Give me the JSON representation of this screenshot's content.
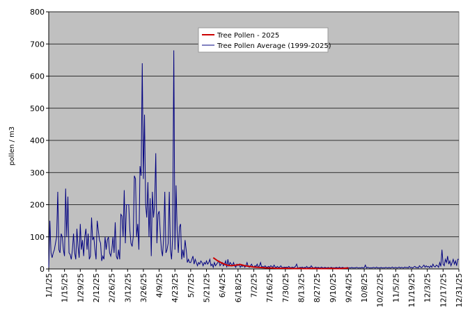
{
  "chart_data": {
    "type": "line",
    "ylabel": "pollen / m3",
    "xlim": [
      0,
      364
    ],
    "ylim": [
      0,
      800
    ],
    "yticks": [
      0,
      100,
      200,
      300,
      400,
      500,
      600,
      700,
      800
    ],
    "xticks": [
      {
        "value": 0,
        "label": "1/1/25"
      },
      {
        "value": 14,
        "label": "1/15/25"
      },
      {
        "value": 28,
        "label": "1/29/25"
      },
      {
        "value": 42,
        "label": "2/12/25"
      },
      {
        "value": 56,
        "label": "2/26/25"
      },
      {
        "value": 70,
        "label": "3/12/25"
      },
      {
        "value": 84,
        "label": "3/26/25"
      },
      {
        "value": 98,
        "label": "4/9/25"
      },
      {
        "value": 112,
        "label": "4/23/25"
      },
      {
        "value": 126,
        "label": "5/7/25"
      },
      {
        "value": 140,
        "label": "5/21/25"
      },
      {
        "value": 154,
        "label": "6/4/25"
      },
      {
        "value": 168,
        "label": "6/18/25"
      },
      {
        "value": 182,
        "label": "7/2/25"
      },
      {
        "value": 196,
        "label": "7/16/25"
      },
      {
        "value": 210,
        "label": "7/30/25"
      },
      {
        "value": 224,
        "label": "8/13/25"
      },
      {
        "value": 238,
        "label": "8/27/25"
      },
      {
        "value": 252,
        "label": "9/10/25"
      },
      {
        "value": 266,
        "label": "9/24/25"
      },
      {
        "value": 280,
        "label": "10/8/25"
      },
      {
        "value": 294,
        "label": "10/22/25"
      },
      {
        "value": 308,
        "label": "11/5/25"
      },
      {
        "value": 322,
        "label": "11/19/25"
      },
      {
        "value": 336,
        "label": "12/3/25"
      },
      {
        "value": 350,
        "label": "12/17/25"
      },
      {
        "value": 364,
        "label": "12/31/25"
      }
    ],
    "grid": true,
    "plot_background": "#c0c0c0",
    "x": [
      0,
      1,
      2,
      3,
      4,
      5,
      6,
      7,
      8,
      9,
      10,
      11,
      12,
      13,
      14,
      15,
      16,
      17,
      18,
      19,
      20,
      21,
      22,
      23,
      24,
      25,
      26,
      27,
      28,
      29,
      30,
      31,
      32,
      33,
      34,
      35,
      36,
      37,
      38,
      39,
      40,
      41,
      42,
      43,
      44,
      45,
      46,
      47,
      48,
      49,
      50,
      51,
      52,
      53,
      54,
      55,
      56,
      57,
      58,
      59,
      60,
      61,
      62,
      63,
      64,
      65,
      66,
      67,
      68,
      69,
      70,
      71,
      72,
      73,
      74,
      75,
      76,
      77,
      78,
      79,
      80,
      81,
      82,
      83,
      84,
      85,
      86,
      87,
      88,
      89,
      90,
      91,
      92,
      93,
      94,
      95,
      96,
      97,
      98,
      99,
      100,
      101,
      102,
      103,
      104,
      105,
      106,
      107,
      108,
      109,
      110,
      111,
      112,
      113,
      114,
      115,
      116,
      117,
      118,
      119,
      120,
      121,
      122,
      123,
      124,
      125,
      126,
      127,
      128,
      129,
      130,
      131,
      132,
      133,
      134,
      135,
      136,
      137,
      138,
      139,
      140,
      141,
      142,
      143,
      144,
      145,
      146,
      147,
      148,
      149,
      150,
      151,
      152,
      153,
      154,
      155,
      156,
      157,
      158,
      159,
      160,
      161,
      162,
      163,
      164,
      165,
      166,
      167,
      168,
      169,
      170,
      171,
      172,
      173,
      174,
      175,
      176,
      177,
      178,
      179,
      180,
      181,
      182,
      183,
      184,
      185,
      186,
      187,
      188,
      189,
      190,
      191,
      192,
      193,
      194,
      195,
      196,
      197,
      198,
      199,
      200,
      201,
      202,
      203,
      204,
      205,
      206,
      207,
      208,
      209,
      210,
      211,
      212,
      213,
      214,
      215,
      216,
      217,
      218,
      219,
      220,
      221,
      222,
      223,
      224,
      225,
      226,
      227,
      228,
      229,
      230,
      231,
      232,
      233,
      234,
      235,
      236,
      237,
      238,
      239,
      240,
      241,
      242,
      243,
      244,
      245,
      246,
      247,
      248,
      249,
      250,
      251,
      252,
      253,
      254,
      255,
      256,
      257,
      258,
      259,
      260,
      261,
      262,
      263,
      264,
      265,
      266,
      267,
      268,
      269,
      270,
      271,
      272,
      273,
      274,
      275,
      276,
      277,
      278,
      279,
      280,
      281,
      282,
      283,
      284,
      285,
      286,
      287,
      288,
      289,
      290,
      291,
      292,
      293,
      294,
      295,
      296,
      297,
      298,
      299,
      300,
      301,
      302,
      303,
      304,
      305,
      306,
      307,
      308,
      309,
      310,
      311,
      312,
      313,
      314,
      315,
      316,
      317,
      318,
      319,
      320,
      321,
      322,
      323,
      324,
      325,
      326,
      327,
      328,
      329,
      330,
      331,
      332,
      333,
      334,
      335,
      336,
      337,
      338,
      339,
      340,
      341,
      342,
      343,
      344,
      345,
      346,
      347,
      348,
      349,
      350,
      351,
      352,
      353,
      354,
      355,
      356,
      357,
      358,
      359,
      360,
      361,
      362,
      363,
      364
    ],
    "series": [
      {
        "name": "Tree Pollen Average (1999-2025)",
        "color": "#000080",
        "values": [
          5,
          150,
          50,
          35,
          50,
          60,
          80,
          100,
          240,
          60,
          50,
          110,
          100,
          60,
          40,
          250,
          100,
          225,
          50,
          45,
          30,
          60,
          110,
          50,
          30,
          125,
          70,
          35,
          140,
          60,
          90,
          40,
          100,
          125,
          60,
          110,
          30,
          40,
          160,
          90,
          100,
          60,
          30,
          150,
          120,
          90,
          80,
          25,
          40,
          30,
          100,
          60,
          90,
          100,
          50,
          40,
          60,
          100,
          50,
          145,
          40,
          30,
          60,
          30,
          170,
          165,
          100,
          245,
          80,
          200,
          200,
          200,
          120,
          80,
          70,
          100,
          290,
          280,
          100,
          140,
          60,
          320,
          290,
          640,
          280,
          480,
          200,
          160,
          270,
          100,
          220,
          40,
          240,
          160,
          200,
          360,
          80,
          170,
          180,
          110,
          60,
          40,
          100,
          240,
          50,
          60,
          80,
          240,
          60,
          30,
          100,
          680,
          60,
          260,
          120,
          50,
          130,
          140,
          30,
          60,
          35,
          90,
          60,
          20,
          30,
          20,
          20,
          30,
          40,
          15,
          30,
          20,
          10,
          20,
          15,
          25,
          20,
          10,
          20,
          15,
          25,
          15,
          20,
          30,
          10,
          15,
          5,
          20,
          10,
          15,
          20,
          25,
          10,
          15,
          20,
          10,
          15,
          25,
          5,
          30,
          10,
          20,
          15,
          10,
          20,
          10,
          5,
          15,
          10,
          15,
          5,
          10,
          8,
          12,
          5,
          10,
          20,
          8,
          5,
          10,
          15,
          8,
          5,
          10,
          8,
          15,
          5,
          10,
          20,
          5,
          8,
          5,
          10,
          6,
          5,
          8,
          5,
          10,
          8,
          5,
          12,
          6,
          5,
          8,
          4,
          6,
          10,
          5,
          4,
          6,
          5,
          6,
          4,
          8,
          5,
          3,
          6,
          4,
          5,
          8,
          15,
          4,
          3,
          5,
          4,
          6,
          3,
          5,
          4,
          8,
          3,
          5,
          4,
          10,
          5,
          3,
          4,
          6,
          3,
          5,
          4,
          3,
          6,
          4,
          3,
          5,
          4,
          3,
          5,
          3,
          4,
          5,
          3,
          4,
          3,
          5,
          4,
          3,
          6,
          3,
          4,
          5,
          3,
          4,
          3,
          5,
          3,
          4,
          3,
          5,
          3,
          4,
          3,
          5,
          4,
          3,
          4,
          3,
          5,
          3,
          4,
          12,
          3,
          5,
          4,
          3,
          4,
          3,
          5,
          4,
          3,
          6,
          3,
          4,
          3,
          5,
          3,
          4,
          3,
          5,
          4,
          3,
          5,
          3,
          4,
          6,
          3,
          4,
          5,
          3,
          4,
          6,
          3,
          5,
          4,
          3,
          6,
          4,
          5,
          3,
          8,
          4,
          5,
          3,
          6,
          8,
          4,
          5,
          3,
          10,
          6,
          4,
          8,
          12,
          5,
          10,
          6,
          8,
          4,
          10,
          5,
          15,
          8,
          6,
          12,
          10,
          5,
          20,
          8,
          60,
          15,
          10,
          30,
          20,
          40,
          15,
          25,
          10,
          20,
          30,
          15,
          25,
          10,
          30,
          30
        ]
      },
      {
        "name": "Tree Pollen - 2025",
        "color": "#cc0000",
        "x": [
          146,
          150,
          154,
          158,
          162,
          166,
          170,
          174,
          178,
          182,
          186,
          190,
          194,
          198,
          202,
          206,
          210,
          214,
          218,
          222,
          226,
          230,
          234,
          238,
          242,
          246,
          250,
          254,
          258,
          262,
          266
        ],
        "values": [
          35,
          25,
          18,
          12,
          10,
          12,
          14,
          10,
          8,
          6,
          5,
          4,
          3,
          3,
          2,
          2,
          2,
          2,
          1,
          2,
          1,
          1,
          2,
          1,
          1,
          1,
          2,
          1,
          1,
          2,
          3
        ]
      }
    ]
  }
}
